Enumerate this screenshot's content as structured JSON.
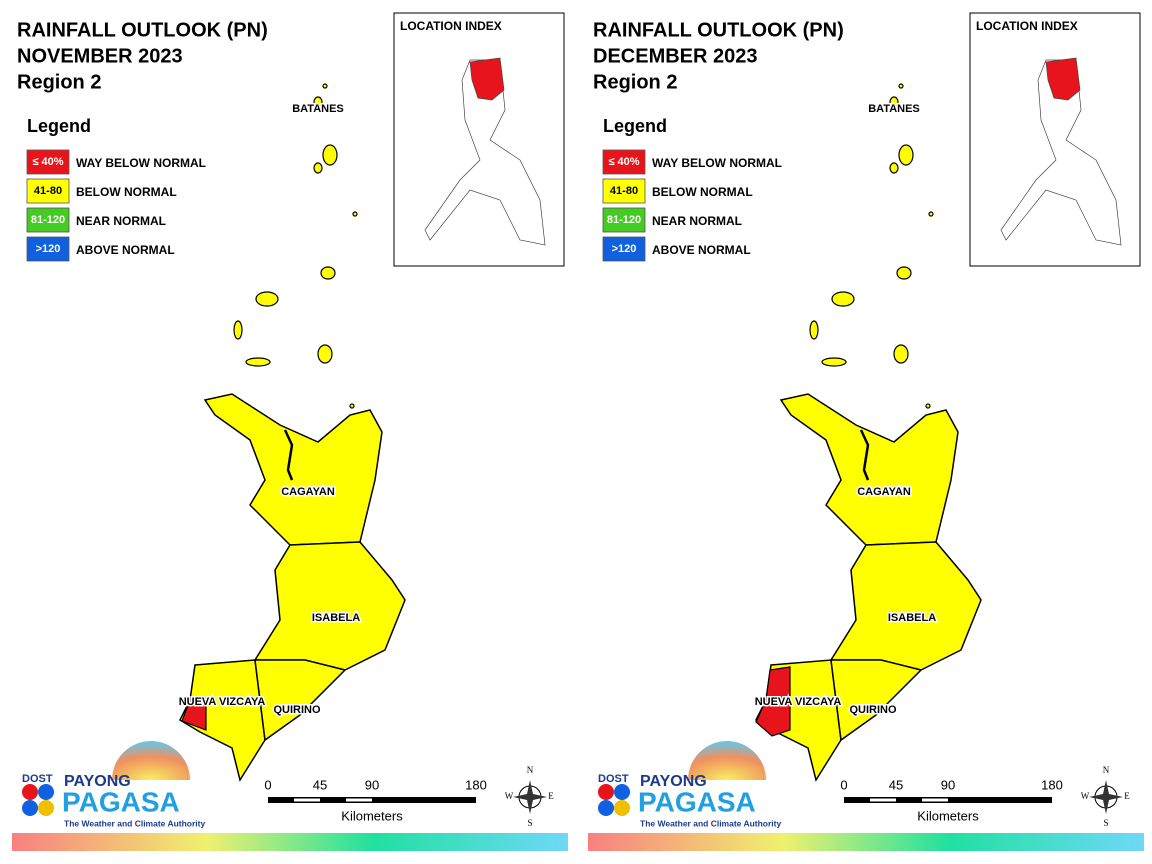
{
  "panels": [
    {
      "title": [
        "RAINFALL OUTLOOK (PN)",
        "NOVEMBER 2023",
        "Region 2"
      ],
      "legend": {
        "title": "Legend",
        "items": [
          {
            "swatch": "≤ 40%",
            "label": "WAY BELOW NORMAL",
            "color": "#e8141c"
          },
          {
            "swatch": "41-80",
            "label": "BELOW NORMAL",
            "color": "#ffff00"
          },
          {
            "swatch": "81-120",
            "label": "NEAR NORMAL",
            "color": "#44cc22"
          },
          {
            "swatch": ">120",
            "label": "ABOVE NORMAL",
            "color": "#1060e0"
          }
        ]
      },
      "location_index": "LOCATION INDEX",
      "provinces": [
        "BATANES",
        "CAGAYAN",
        "ISABELA",
        "NUEVA VIZCAYA",
        "QUIRINO"
      ],
      "scale": {
        "ticks": [
          0,
          45,
          90,
          180
        ],
        "label": "Kilometers"
      },
      "compass": [
        "N",
        "E",
        "S",
        "W"
      ],
      "logo": {
        "agency": "DOST",
        "top": "PAYONG",
        "main": "PAGASA",
        "tagline": "The Weather and Climate Authority"
      }
    },
    {
      "title": [
        "RAINFALL OUTLOOK (PN)",
        "DECEMBER 2023",
        "Region 2"
      ],
      "legend": {
        "title": "Legend",
        "items": [
          {
            "swatch": "≤ 40%",
            "label": "WAY BELOW NORMAL",
            "color": "#e8141c"
          },
          {
            "swatch": "41-80",
            "label": "BELOW NORMAL",
            "color": "#ffff00"
          },
          {
            "swatch": "81-120",
            "label": "NEAR NORMAL",
            "color": "#44cc22"
          },
          {
            "swatch": ">120",
            "label": "ABOVE NORMAL",
            "color": "#1060e0"
          }
        ]
      },
      "location_index": "LOCATION INDEX",
      "provinces": [
        "BATANES",
        "CAGAYAN",
        "ISABELA",
        "NUEVA VIZCAYA",
        "QUIRINO"
      ],
      "scale": {
        "ticks": [
          0,
          45,
          90,
          180
        ],
        "label": "Kilometers"
      },
      "compass": [
        "N",
        "E",
        "S",
        "W"
      ],
      "logo": {
        "agency": "DOST",
        "top": "PAYONG",
        "main": "PAGASA",
        "tagline": "The Weather and Climate Authority"
      }
    }
  ]
}
